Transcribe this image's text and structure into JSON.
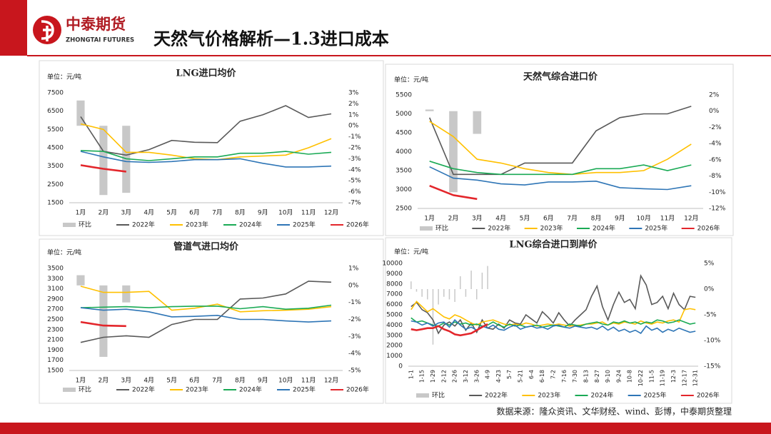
{
  "header": {
    "logo": "中泰期货",
    "logo_en": "ZHONGTAI FUTURES",
    "title": "天然气价格解析—1.3进口成本"
  },
  "footer": {
    "source": "数据来源：隆众资讯、文华财经、wind、彭博，中泰期货整理"
  },
  "chart_data": [
    {
      "type": "combo",
      "title": "LNG进口均价",
      "unit": "单位：元/吨",
      "categories": [
        "1月",
        "2月",
        "3月",
        "4月",
        "5月",
        "6月",
        "7月",
        "8月",
        "9月",
        "10月",
        "11月",
        "12月"
      ],
      "ylim": [
        1500,
        7500
      ],
      "yticks": [
        1500,
        2500,
        3500,
        4500,
        5500,
        6500,
        7500
      ],
      "y2lim": [
        -7,
        3
      ],
      "y2ticks": [
        {
          "value": -7,
          "label": "-7%"
        },
        {
          "value": -6,
          "label": "-6%"
        },
        {
          "value": -5,
          "label": "-5%"
        },
        {
          "value": -4,
          "label": "-4%"
        },
        {
          "value": -3,
          "label": "-3%"
        },
        {
          "value": -2,
          "label": "-2%"
        },
        {
          "value": -1,
          "label": "-1%"
        },
        {
          "value": 0,
          "label": "0%"
        },
        {
          "value": 1,
          "label": "1%"
        },
        {
          "value": 2,
          "label": "2%"
        },
        {
          "value": 3,
          "label": "3%"
        }
      ],
      "series": [
        {
          "name": "环比",
          "type": "bar",
          "axis": "y2",
          "color": "#c8c8c8",
          "values": [
            2.3,
            -6.3,
            -6.1,
            null,
            null,
            null,
            null,
            null,
            null,
            null,
            null,
            null
          ]
        },
        {
          "name": "2022年",
          "type": "line",
          "color": "#595959",
          "values": [
            6200,
            4300,
            4100,
            4400,
            4900,
            4800,
            4780,
            5950,
            6300,
            6800,
            6150,
            6350
          ]
        },
        {
          "name": "2023年",
          "type": "line",
          "color": "#ffc000",
          "values": [
            5800,
            5500,
            4250,
            4250,
            4100,
            3900,
            3850,
            4000,
            4050,
            4100,
            4500,
            5000
          ]
        },
        {
          "name": "2024年",
          "type": "line",
          "color": "#1aaa55",
          "values": [
            4350,
            4300,
            3900,
            3800,
            3900,
            4000,
            4000,
            4200,
            4200,
            4300,
            4150,
            4250
          ]
        },
        {
          "name": "2025年",
          "type": "line",
          "color": "#2e75b6",
          "values": [
            4300,
            4000,
            3750,
            3700,
            3750,
            3850,
            3850,
            3900,
            3650,
            3450,
            3450,
            3500
          ]
        },
        {
          "name": "2026年",
          "type": "line",
          "color": "#e3262b",
          "values": [
            3550,
            3350,
            3200,
            null,
            null,
            null,
            null,
            null,
            null,
            null,
            null,
            null
          ]
        }
      ]
    },
    {
      "type": "combo",
      "title": "天然气综合进口价",
      "unit": "单位：元/吨",
      "categories": [
        "1月",
        "2月",
        "3月",
        "4月",
        "5月",
        "6月",
        "7月",
        "8月",
        "9月",
        "10月",
        "11月",
        "12月"
      ],
      "ylim": [
        2500,
        5500
      ],
      "yticks": [
        2500,
        3000,
        3500,
        4000,
        4500,
        5000,
        5500
      ],
      "y2lim": [
        -12,
        2
      ],
      "y2ticks": [
        {
          "value": -12,
          "label": "-12%"
        },
        {
          "value": -10,
          "label": "-10%"
        },
        {
          "value": -8,
          "label": "-8%"
        },
        {
          "value": -6,
          "label": "-6%"
        },
        {
          "value": -4,
          "label": "-4%"
        },
        {
          "value": -2,
          "label": "-2%"
        },
        {
          "value": 0,
          "label": "0%"
        },
        {
          "value": 2,
          "label": "2%"
        }
      ],
      "series": [
        {
          "name": "环比",
          "type": "bar",
          "axis": "y2",
          "color": "#c8c8c8",
          "values": [
            0.2,
            -10,
            -2.8,
            null,
            null,
            null,
            null,
            null,
            null,
            null,
            null,
            null
          ]
        },
        {
          "name": "2022年",
          "type": "line",
          "color": "#595959",
          "values": [
            4900,
            3400,
            3400,
            3400,
            3700,
            3700,
            3700,
            4550,
            4900,
            5000,
            5000,
            5200
          ]
        },
        {
          "name": "2023年",
          "type": "line",
          "color": "#ffc000",
          "values": [
            4800,
            4400,
            3800,
            3700,
            3550,
            3450,
            3400,
            3450,
            3450,
            3500,
            3800,
            4200
          ]
        },
        {
          "name": "2024年",
          "type": "line",
          "color": "#1aaa55",
          "values": [
            3750,
            3550,
            3450,
            3400,
            3400,
            3400,
            3400,
            3550,
            3550,
            3650,
            3500,
            3650
          ]
        },
        {
          "name": "2025年",
          "type": "line",
          "color": "#2e75b6",
          "values": [
            3600,
            3300,
            3250,
            3150,
            3120,
            3200,
            3200,
            3220,
            3050,
            3020,
            3000,
            3100
          ]
        },
        {
          "name": "2026年",
          "type": "line",
          "color": "#e3262b",
          "values": [
            3100,
            2850,
            2750,
            null,
            null,
            null,
            null,
            null,
            null,
            null,
            null,
            null
          ]
        }
      ]
    },
    {
      "type": "combo",
      "title": "管道气进口均价",
      "unit": "单位：元/吨",
      "categories": [
        "1月",
        "2月",
        "3月",
        "4月",
        "5月",
        "6月",
        "7月",
        "8月",
        "9月",
        "10月",
        "11月",
        "12月"
      ],
      "ylim": [
        1500,
        3500
      ],
      "yticks": [
        1500,
        1700,
        1900,
        2100,
        2300,
        2500,
        2700,
        2900,
        3100,
        3300,
        3500
      ],
      "y2lim": [
        -5,
        1
      ],
      "y2ticks": [
        {
          "value": -5,
          "label": "-5%"
        },
        {
          "value": -4,
          "label": "-4%"
        },
        {
          "value": -3,
          "label": "-3%"
        },
        {
          "value": -2,
          "label": "-2%"
        },
        {
          "value": -1,
          "label": "-1%"
        },
        {
          "value": 0,
          "label": "0%"
        },
        {
          "value": 1,
          "label": "1%"
        }
      ],
      "series": [
        {
          "name": "环比",
          "type": "bar",
          "axis": "y2",
          "color": "#c8c8c8",
          "values": [
            0.6,
            -4.2,
            -1,
            null,
            null,
            null,
            null,
            null,
            null,
            null,
            null,
            null
          ]
        },
        {
          "name": "2022年",
          "type": "line",
          "color": "#595959",
          "values": [
            2050,
            2150,
            2180,
            2150,
            2400,
            2500,
            2500,
            2900,
            2920,
            3000,
            3250,
            3230
          ]
        },
        {
          "name": "2023年",
          "type": "line",
          "color": "#ffc000",
          "values": [
            3150,
            3030,
            3030,
            3050,
            2680,
            2720,
            2800,
            2650,
            2670,
            2680,
            2700,
            2750
          ]
        },
        {
          "name": "2024年",
          "type": "line",
          "color": "#1aaa55",
          "values": [
            2730,
            2740,
            2750,
            2730,
            2750,
            2760,
            2760,
            2710,
            2750,
            2700,
            2720,
            2780
          ]
        },
        {
          "name": "2025年",
          "type": "line",
          "color": "#2e75b6",
          "values": [
            2730,
            2680,
            2700,
            2650,
            2550,
            2560,
            2580,
            2500,
            2500,
            2470,
            2450,
            2470
          ]
        },
        {
          "name": "2026年",
          "type": "line",
          "color": "#e3262b",
          "values": [
            2450,
            2380,
            2370,
            null,
            null,
            null,
            null,
            null,
            null,
            null,
            null,
            null
          ]
        }
      ]
    },
    {
      "type": "combo",
      "title": "LNG综合进口到岸价",
      "unit": "单位：元/吨",
      "categories": [
        "1-1",
        null,
        "1-15",
        null,
        "1-29",
        null,
        "2-12",
        null,
        "2-26",
        null,
        "3-12",
        null,
        "3-26",
        null,
        "4-9",
        null,
        "4-23",
        null,
        "5-7",
        null,
        "5-21",
        null,
        "6-4",
        null,
        "6-18",
        null,
        "7-2",
        null,
        "7-16",
        null,
        "7-30",
        null,
        "8-13",
        null,
        "8-27",
        null,
        "9-10",
        null,
        "9-24",
        null,
        "10-8",
        null,
        "10-22",
        null,
        "11-5",
        null,
        "11-19",
        null,
        "12-3",
        null,
        "12-17",
        null,
        "12-31"
      ],
      "ylim": [
        0,
        10000
      ],
      "yticks": [
        0,
        1000,
        2000,
        3000,
        4000,
        5000,
        6000,
        7000,
        8000,
        9000,
        10000
      ],
      "y2lim": [
        -15,
        5
      ],
      "y2ticks": [
        {
          "value": -15,
          "label": "-15%"
        },
        {
          "value": -10,
          "label": "-10%"
        },
        {
          "value": -5,
          "label": "-5%"
        },
        {
          "value": 0,
          "label": "0%"
        },
        {
          "value": 5,
          "label": "5%"
        }
      ],
      "series": [
        {
          "name": "环比",
          "type": "bar",
          "axis": "y2",
          "color": "#c8c8c8",
          "values": [
            1.5,
            -0.5,
            -1.5,
            -2,
            -10.8,
            -3,
            -1.5,
            -2,
            -2.5,
            2.5,
            -1.5,
            3.6,
            -2,
            3.2,
            4.5,
            null,
            null,
            null,
            null,
            null,
            null,
            null,
            null,
            null,
            null,
            null,
            null,
            null,
            null,
            null,
            null,
            null,
            null,
            null,
            null,
            null,
            null,
            null,
            null,
            null,
            null,
            null,
            null,
            null,
            null,
            null,
            null,
            null,
            null,
            null,
            null,
            null,
            null
          ]
        },
        {
          "name": "2022年",
          "type": "line",
          "color": "#595959",
          "values": [
            5800,
            6200,
            5500,
            5200,
            4500,
            3200,
            4000,
            4300,
            3900,
            4500,
            3500,
            4200,
            3300,
            4500,
            3700,
            3600,
            4100,
            3700,
            4500,
            4200,
            4100,
            5000,
            4600,
            4200,
            5300,
            4800,
            4200,
            5200,
            4500,
            3900,
            4500,
            5000,
            5500,
            6800,
            7800,
            5800,
            4500,
            6000,
            7200,
            6200,
            6500,
            5600,
            8800,
            7900,
            6000,
            6200,
            6800,
            5600,
            7100,
            6000,
            5500,
            6800,
            6700
          ]
        },
        {
          "name": "2023年",
          "type": "line",
          "color": "#ffc000",
          "values": [
            5500,
            6300,
            5800,
            5300,
            5600,
            5200,
            4800,
            4600,
            5000,
            4800,
            4500,
            4200,
            4000,
            4300,
            4400,
            4500,
            4300,
            4100,
            4000,
            4100,
            4000,
            4200,
            4100,
            3900,
            4000,
            4100,
            4000,
            4100,
            4000,
            3900,
            3950,
            4000,
            4100,
            4100,
            4200,
            4300,
            4000,
            4200,
            4100,
            4300,
            4200,
            4100,
            4400,
            4200,
            4100,
            4300,
            4200,
            4400,
            4500,
            4300,
            5500,
            5600,
            5500
          ]
        },
        {
          "name": "2024年",
          "type": "line",
          "color": "#1aaa55",
          "values": [
            4700,
            4300,
            4400,
            4200,
            4000,
            3900,
            4200,
            4000,
            4300,
            4100,
            4200,
            4000,
            4100,
            3900,
            4000,
            4300,
            4000,
            3800,
            4100,
            3900,
            4000,
            3800,
            3900,
            4000,
            3800,
            3900,
            4000,
            3900,
            3800,
            4100,
            4000,
            3900,
            4100,
            4200,
            4300,
            4100,
            4000,
            4300,
            4200,
            4400,
            4200,
            4300,
            4100,
            4300,
            4200,
            4500,
            4400,
            4200,
            4300,
            4500,
            4300,
            4100,
            4200
          ]
        },
        {
          "name": "2025年",
          "type": "line",
          "color": "#2e75b6",
          "values": [
            4400,
            4300,
            4000,
            4200,
            3900,
            4200,
            4300,
            3800,
            4500,
            4000,
            3600,
            3800,
            3500,
            3900,
            3700,
            4000,
            3600,
            3500,
            3800,
            4000,
            3600,
            3800,
            3900,
            3700,
            3800,
            3600,
            3900,
            4000,
            3800,
            3700,
            3900,
            3800,
            3700,
            3800,
            3600,
            3900,
            3500,
            3800,
            3400,
            3600,
            3300,
            3500,
            3200,
            3900,
            3500,
            3700,
            3300,
            3600,
            3400,
            3700,
            3500,
            3300,
            3400
          ]
        },
        {
          "name": "2026年",
          "type": "line",
          "color": "#e3262b",
          "values": [
            3600,
            3500,
            3600,
            3700,
            3700,
            3900,
            3600,
            3400,
            3100,
            3000,
            3100,
            3200,
            3500,
            3800,
            4100,
            null,
            null,
            null,
            null,
            null,
            null,
            null,
            null,
            null,
            null,
            null,
            null,
            null,
            null,
            null,
            null,
            null,
            null,
            null,
            null,
            null,
            null,
            null,
            null,
            null,
            null,
            null,
            null,
            null,
            null,
            null,
            null,
            null,
            null,
            null,
            null,
            null,
            null
          ]
        }
      ]
    }
  ]
}
